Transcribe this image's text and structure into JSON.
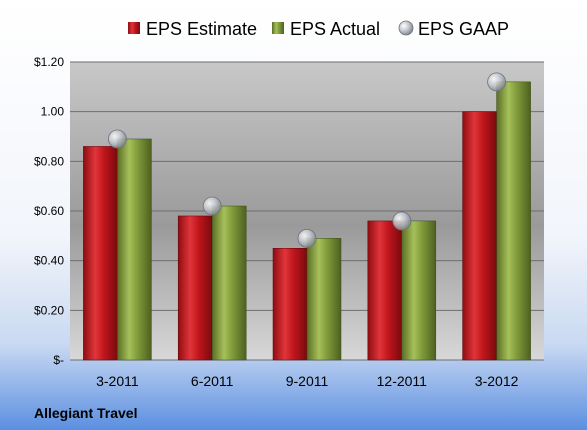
{
  "company": "Allegiant Travel",
  "colors": {
    "estimate": "#c0161c",
    "actual": "#7f9a3a",
    "gaap": "#b8bcc4"
  },
  "chart_data": {
    "type": "bar",
    "categories": [
      "3-2011",
      "6-2011",
      "9-2011",
      "12-2011",
      "3-2012"
    ],
    "series": [
      {
        "name": "EPS Estimate",
        "values": [
          0.86,
          0.58,
          0.45,
          0.56,
          1.0
        ]
      },
      {
        "name": "EPS Actual",
        "values": [
          0.89,
          0.62,
          0.49,
          0.56,
          1.12
        ]
      },
      {
        "name": "EPS GAAP",
        "type": "scatter",
        "values": [
          0.89,
          0.62,
          0.49,
          0.56,
          1.12
        ]
      }
    ],
    "y_ticks": [
      {
        "value": 0,
        "label": "$-"
      },
      {
        "value": 0.2,
        "label": "$0.20"
      },
      {
        "value": 0.4,
        "label": "$0.40"
      },
      {
        "value": 0.6,
        "label": "$0.60"
      },
      {
        "value": 0.8,
        "label": "$0.80"
      },
      {
        "value": 1.0,
        "label": "1.00"
      },
      {
        "value": 1.2,
        "label": "$1.20"
      }
    ],
    "ylim": [
      0,
      1.2
    ],
    "grid": true,
    "legend_position": "top"
  }
}
